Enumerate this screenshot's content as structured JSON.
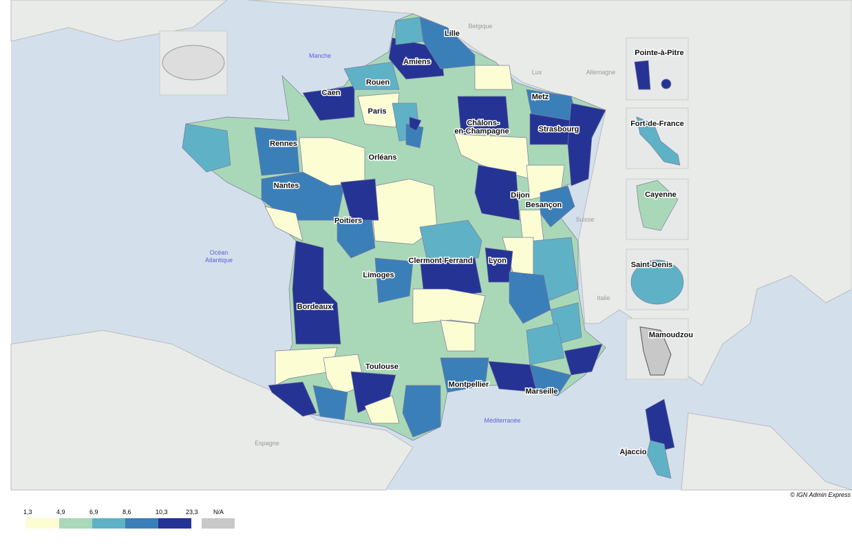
{
  "map": {
    "sea_labels": [
      "Manche",
      "Océan",
      "Atlantique",
      "Méditerranée"
    ],
    "country_labels": [
      "Belgique",
      "Lux",
      "Allemagne",
      "Suisse",
      "Italie",
      "Espagne"
    ],
    "cities": [
      "Lille",
      "Amiens",
      "Rouen",
      "Caen",
      "Paris",
      "Metz",
      "Strasbourg",
      "Châlons-",
      "en-Champagne",
      "Rennes",
      "Orléans",
      "Nantes",
      "Dijon",
      "Besançon",
      "Poitiers",
      "Clermont-Ferrand",
      "Lyon",
      "Limoges",
      "Bordeaux",
      "Toulouse",
      "Montpellier",
      "Marseille",
      "Ajaccio"
    ],
    "overseas": [
      "Pointe-à-Pitre",
      "Fort-de-France",
      "Cayenne",
      "Saint-Denis",
      "Mamoudzou"
    ],
    "credit": "© IGN Admin Express"
  },
  "legend": {
    "classes": [
      {
        "from": {
          "value": 1.3,
          "label": "1,3"
        },
        "color": "#fdfdd4"
      },
      {
        "from": {
          "value": 4.9,
          "label": "4,9"
        },
        "color": "#a9d8b8"
      },
      {
        "from": {
          "value": 6.9,
          "label": "6,9"
        },
        "color": "#5fb2c6"
      },
      {
        "from": {
          "value": 8.6,
          "label": "8,6"
        },
        "color": "#3b7fb9"
      },
      {
        "from": {
          "value": 10.3,
          "label": "10,3"
        },
        "color": "#253494"
      }
    ],
    "max": {
      "value": 23.3,
      "label": "23,3"
    },
    "na": {
      "label": "N/A",
      "color": "#c8c8c8"
    }
  }
}
